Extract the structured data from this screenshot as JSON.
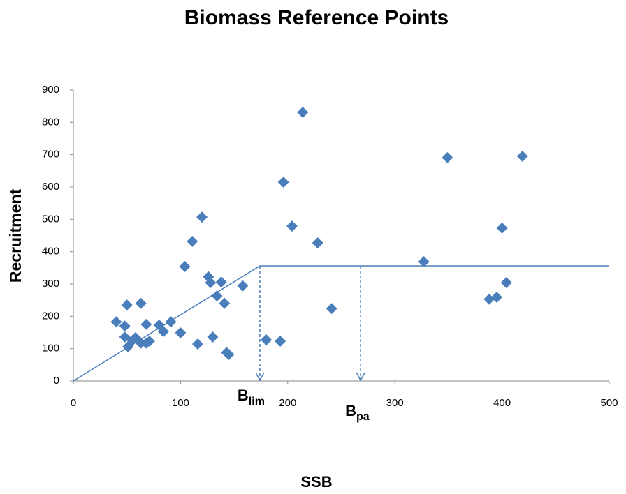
{
  "chart_data": {
    "type": "scatter",
    "title": "Biomass Reference Points",
    "x_label": "SSB",
    "y_label": "Recruitment",
    "color": "#4a7ebb",
    "x": [
      40,
      50,
      48,
      48,
      51,
      55,
      58,
      63,
      63,
      68,
      68,
      71,
      80,
      84,
      91,
      100,
      104,
      111,
      116,
      120,
      126,
      128,
      130,
      134,
      138,
      141,
      143,
      145,
      158,
      180,
      193,
      196,
      204,
      214,
      228,
      241,
      327,
      349,
      388,
      395,
      400,
      404,
      419
    ],
    "values": [
      183,
      235,
      170,
      136,
      106,
      125,
      134,
      117,
      240,
      175,
      117,
      123,
      173,
      153,
      183,
      149,
      354,
      432,
      114,
      507,
      322,
      304,
      136,
      263,
      306,
      240,
      88,
      82,
      294,
      127,
      123,
      615,
      479,
      831,
      427,
      224,
      369,
      691,
      253,
      259,
      473,
      304,
      695
    ],
    "xlim": [
      0,
      500
    ],
    "xticks": [
      0,
      100,
      200,
      300,
      400,
      500
    ],
    "ylim": [
      0,
      900
    ],
    "yticks": [
      0,
      100,
      200,
      300,
      400,
      500,
      600,
      700,
      800,
      900
    ],
    "reference_line": {
      "x": [
        0,
        174,
        500
      ],
      "y": [
        0,
        356,
        356
      ],
      "color": "#4a7ebb"
    },
    "annotations": [
      {
        "text": "B",
        "sub": "lim",
        "x": 174
      },
      {
        "text": "B",
        "sub": "pa",
        "x": 268
      }
    ]
  }
}
